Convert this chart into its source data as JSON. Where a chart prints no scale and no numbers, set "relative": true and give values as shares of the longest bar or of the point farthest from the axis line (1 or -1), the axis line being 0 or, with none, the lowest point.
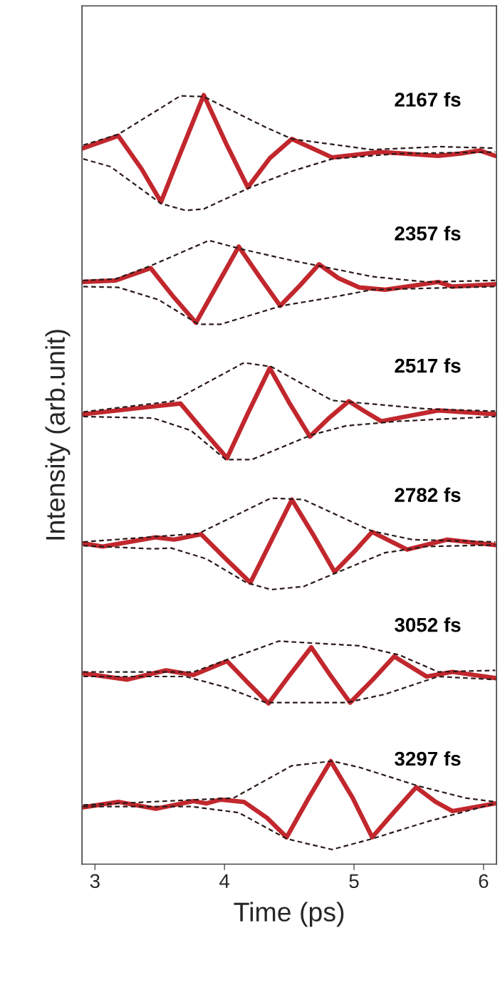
{
  "chart_data": {
    "type": "line",
    "xlabel": "Time (ps)",
    "ylabel": "Intensity (arb.unit)",
    "relative": true,
    "xlim": [
      2.9,
      6.1
    ],
    "xticks": [
      3,
      4,
      5,
      6
    ],
    "legend": false,
    "grid": false,
    "marker": "none",
    "series": [
      {
        "name": "2167 fs",
        "color": "#c1272d",
        "line_style": "solid",
        "x": [
          2.91,
          3.18,
          3.36,
          3.51,
          3.67,
          3.84,
          4.01,
          4.18,
          4.35,
          4.52,
          4.83,
          5.2,
          5.65,
          5.82,
          5.97,
          6.09
        ],
        "values": [
          0.931,
          0.947,
          0.904,
          0.861,
          0.929,
          1.0,
          0.938,
          0.88,
          0.918,
          0.943,
          0.919,
          0.926,
          0.921,
          0.924,
          0.928,
          0.921
        ]
      },
      {
        "color": "#2b1a1a",
        "line_style": "dashed",
        "x": [
          2.91,
          3.18,
          3.66,
          3.84,
          4.32,
          4.52,
          4.83,
          5.14,
          5.65,
          6.09
        ],
        "values": [
          0.935,
          0.949,
          0.999,
          0.998,
          0.958,
          0.943,
          0.936,
          0.929,
          0.933,
          0.931
        ]
      },
      {
        "color": "#2b1a1a",
        "line_style": "dashed",
        "x": [
          2.91,
          3.12,
          3.51,
          3.7,
          3.84,
          4.2,
          4.52,
          4.83,
          5.35,
          6.09
        ],
        "values": [
          0.917,
          0.907,
          0.859,
          0.85,
          0.852,
          0.88,
          0.901,
          0.917,
          0.924,
          0.926
        ]
      },
      {
        "name": "2357 fs",
        "color": "#c1272d",
        "line_style": "solid",
        "x": [
          2.91,
          3.16,
          3.43,
          3.6,
          3.78,
          3.94,
          4.11,
          4.27,
          4.43,
          4.58,
          4.73,
          4.88,
          5.04,
          5.24,
          5.65,
          5.76,
          6.09
        ],
        "values": [
          0.757,
          0.759,
          0.775,
          0.739,
          0.704,
          0.752,
          0.803,
          0.764,
          0.726,
          0.752,
          0.78,
          0.762,
          0.75,
          0.747,
          0.757,
          0.751,
          0.754
        ]
      },
      {
        "color": "#2b1a1a",
        "line_style": "dashed",
        "x": [
          2.91,
          3.16,
          3.43,
          3.88,
          4.15,
          4.52,
          5.14,
          5.56,
          6.09
        ],
        "values": [
          0.759,
          0.761,
          0.778,
          0.811,
          0.799,
          0.785,
          0.764,
          0.757,
          0.759
        ]
      },
      {
        "color": "#2b1a1a",
        "line_style": "dashed",
        "x": [
          2.91,
          3.18,
          3.49,
          3.8,
          3.97,
          4.44,
          4.83,
          5.14,
          6.09
        ],
        "values": [
          0.751,
          0.75,
          0.734,
          0.702,
          0.702,
          0.726,
          0.737,
          0.747,
          0.751
        ]
      },
      {
        "name": "2517 fs",
        "color": "#c1272d",
        "line_style": "solid",
        "x": [
          2.91,
          3.39,
          3.66,
          3.84,
          4.02,
          4.18,
          4.35,
          4.5,
          4.66,
          4.8,
          4.96,
          5.08,
          5.21,
          5.65,
          6.09
        ],
        "values": [
          0.585,
          0.594,
          0.599,
          0.563,
          0.528,
          0.586,
          0.645,
          0.6,
          0.556,
          0.579,
          0.602,
          0.589,
          0.576,
          0.59,
          0.585
        ]
      },
      {
        "color": "#2b1a1a",
        "line_style": "dashed",
        "x": [
          2.91,
          3.6,
          4.15,
          4.36,
          4.83,
          5.56,
          6.09
        ],
        "values": [
          0.588,
          0.602,
          0.652,
          0.647,
          0.603,
          0.592,
          0.589
        ]
      },
      {
        "color": "#2b1a1a",
        "line_style": "dashed",
        "x": [
          2.91,
          3.45,
          3.74,
          4.01,
          4.21,
          4.67,
          4.94,
          5.35,
          6.09
        ],
        "values": [
          0.582,
          0.58,
          0.564,
          0.526,
          0.526,
          0.558,
          0.57,
          0.576,
          0.582
        ]
      },
      {
        "name": "2782 fs",
        "color": "#c1272d",
        "line_style": "solid",
        "x": [
          2.91,
          3.06,
          3.47,
          3.61,
          3.82,
          4.01,
          4.2,
          4.36,
          4.52,
          4.69,
          4.85,
          5.0,
          5.14,
          5.41,
          5.72,
          6.09
        ],
        "values": [
          0.417,
          0.413,
          0.425,
          0.422,
          0.429,
          0.397,
          0.366,
          0.42,
          0.474,
          0.427,
          0.38,
          0.406,
          0.432,
          0.409,
          0.422,
          0.415
        ]
      },
      {
        "color": "#2b1a1a",
        "line_style": "dashed",
        "x": [
          2.91,
          3.8,
          4.36,
          4.61,
          5.14,
          5.45,
          6.09
        ],
        "values": [
          0.419,
          0.43,
          0.476,
          0.474,
          0.433,
          0.422,
          0.419
        ]
      },
      {
        "color": "#2b1a1a",
        "line_style": "dashed",
        "x": [
          2.91,
          3.45,
          3.59,
          3.86,
          4.17,
          4.36,
          4.61,
          4.85,
          5.24,
          5.56,
          6.09
        ],
        "values": [
          0.414,
          0.41,
          0.411,
          0.397,
          0.366,
          0.357,
          0.361,
          0.378,
          0.405,
          0.413,
          0.415
        ]
      },
      {
        "name": "3052 fs",
        "color": "#c1272d",
        "line_style": "solid",
        "x": [
          2.91,
          3.25,
          3.55,
          3.76,
          4.02,
          4.18,
          4.34,
          4.5,
          4.67,
          4.82,
          4.97,
          5.14,
          5.31,
          5.56,
          5.76,
          6.09
        ],
        "values": [
          0.248,
          0.24,
          0.252,
          0.246,
          0.264,
          0.236,
          0.209,
          0.245,
          0.282,
          0.245,
          0.21,
          0.239,
          0.27,
          0.244,
          0.25,
          0.242
        ]
      },
      {
        "color": "#2b1a1a",
        "line_style": "dashed",
        "x": [
          2.91,
          3.76,
          4.42,
          5.04,
          5.35,
          5.65,
          6.09
        ],
        "values": [
          0.25,
          0.25,
          0.29,
          0.284,
          0.272,
          0.25,
          0.252
        ]
      },
      {
        "color": "#2b1a1a",
        "line_style": "dashed",
        "x": [
          2.91,
          3.7,
          4.01,
          4.32,
          4.94,
          5.24,
          5.65,
          6.09
        ],
        "values": [
          0.244,
          0.244,
          0.23,
          0.21,
          0.21,
          0.221,
          0.244,
          0.24
        ]
      },
      {
        "name": "3297 fs",
        "color": "#c1272d",
        "line_style": "solid",
        "x": [
          2.91,
          3.18,
          3.47,
          3.76,
          3.86,
          3.97,
          4.15,
          4.33,
          4.48,
          4.65,
          4.82,
          4.99,
          5.14,
          5.31,
          5.48,
          5.63,
          5.76,
          6.09
        ],
        "values": [
          0.074,
          0.081,
          0.072,
          0.082,
          0.079,
          0.084,
          0.081,
          0.06,
          0.035,
          0.086,
          0.134,
          0.086,
          0.035,
          0.068,
          0.1,
          0.081,
          0.069,
          0.079
        ]
      },
      {
        "color": "#2b1a1a",
        "line_style": "dashed",
        "x": [
          2.91,
          4.07,
          4.52,
          4.83,
          5.04,
          5.49,
          5.86,
          6.09
        ],
        "values": [
          0.077,
          0.086,
          0.128,
          0.134,
          0.126,
          0.102,
          0.086,
          0.081
        ]
      },
      {
        "color": "#2b1a1a",
        "line_style": "dashed",
        "x": [
          2.91,
          3.74,
          4.11,
          4.48,
          4.83,
          5.14,
          5.56,
          6.09
        ],
        "values": [
          0.075,
          0.075,
          0.067,
          0.033,
          0.019,
          0.033,
          0.055,
          0.079
        ]
      }
    ]
  }
}
